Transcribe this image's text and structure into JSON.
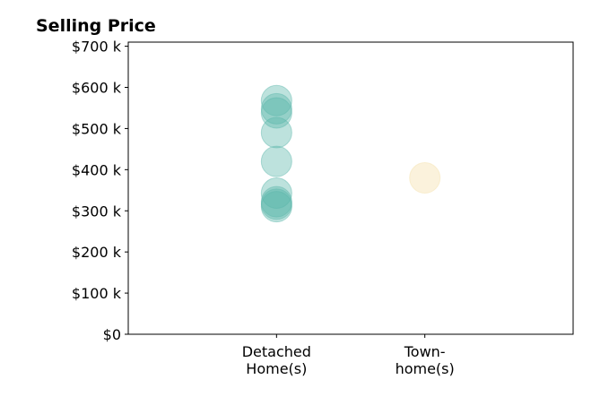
{
  "chart_data": {
    "type": "scatter",
    "title": "Selling Price",
    "xlabel": "",
    "ylabel": "",
    "categories": [
      "Detached\nHome(s)",
      "Town-\nhome(s)"
    ],
    "y_ticks": [
      {
        "value": 0,
        "label": "$0"
      },
      {
        "value": 100000,
        "label": "$100 k"
      },
      {
        "value": 200000,
        "label": "$200 k"
      },
      {
        "value": 300000,
        "label": "$300 k"
      },
      {
        "value": 400000,
        "label": "$400 k"
      },
      {
        "value": 500000,
        "label": "$500 k"
      },
      {
        "value": 600000,
        "label": "$600 k"
      },
      {
        "value": 700000,
        "label": "$700 k"
      }
    ],
    "ylim": [
      0,
      710000
    ],
    "xlim": [
      0,
      3
    ],
    "grid": false,
    "series": [
      {
        "category": "Detached\nHome(s)",
        "color": "#5bb6ab",
        "values": [
          568000,
          548000,
          538000,
          490000,
          420000,
          343000,
          322000,
          316000,
          310000
        ]
      },
      {
        "category": "Town-\nhome(s)",
        "color": "#f5dfa8",
        "values": [
          380000
        ]
      }
    ]
  }
}
